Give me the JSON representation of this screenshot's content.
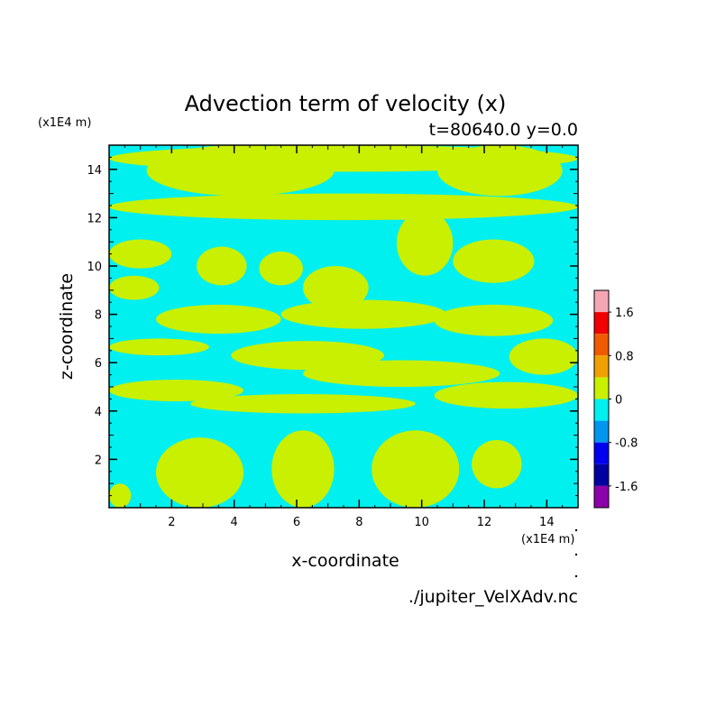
{
  "chart_data": {
    "type": "heatmap",
    "title": "Advection term of velocity (x)",
    "subtitle": "t=80640.0 y=0.0",
    "xlabel": "x-coordinate",
    "ylabel": "z-coordinate",
    "x_unit": "(x1E4 m)",
    "y_unit": "(x1E4 m)",
    "source_file": "./jupiter_VelXAdv.nc",
    "xlim": [
      0,
      15
    ],
    "ylim": [
      0,
      15
    ],
    "x_ticks": [
      2,
      4,
      6,
      8,
      10,
      12,
      14
    ],
    "y_ticks": [
      2,
      4,
      6,
      8,
      10,
      12,
      14
    ],
    "colors": {
      "negative_small": "#00f0f0",
      "positive_small": "#c8f000"
    },
    "colorbar": {
      "levels": [
        {
          "color": "#f5a6b4"
        },
        {
          "color": "#f00000"
        },
        {
          "color": "#f05a00"
        },
        {
          "color": "#f0a000"
        },
        {
          "color": "#c8f000"
        },
        {
          "color": "#00f0f0"
        },
        {
          "color": "#0096f0"
        },
        {
          "color": "#0000f0"
        },
        {
          "color": "#0000a0"
        },
        {
          "color": "#8c00aa"
        }
      ],
      "tick_labels": [
        {
          "value": 1.6,
          "label": "1.6"
        },
        {
          "value": 0.8,
          "label": "0.8"
        },
        {
          "value": 0,
          "label": "0"
        },
        {
          "value": -0.8,
          "label": "-0.8"
        },
        {
          "value": -1.6,
          "label": "-1.6"
        }
      ],
      "range": [
        -2.0,
        2.0
      ]
    },
    "positive_regions": [
      {
        "x": [
          0.0,
          15.0
        ],
        "y": [
          13.9,
          15.0
        ]
      },
      {
        "x": [
          1.2,
          7.2
        ],
        "y": [
          12.9,
          15.0
        ]
      },
      {
        "x": [
          10.5,
          14.5
        ],
        "y": [
          12.9,
          15.0
        ]
      },
      {
        "x": [
          0.0,
          15.0
        ],
        "y": [
          11.9,
          13.0
        ]
      },
      {
        "x": [
          0.0,
          2.0
        ],
        "y": [
          9.9,
          11.1
        ]
      },
      {
        "x": [
          2.8,
          4.4
        ],
        "y": [
          9.2,
          10.8
        ]
      },
      {
        "x": [
          4.8,
          6.2
        ],
        "y": [
          9.2,
          10.6
        ]
      },
      {
        "x": [
          6.2,
          8.3
        ],
        "y": [
          8.2,
          10.0
        ]
      },
      {
        "x": [
          9.2,
          11.0
        ],
        "y": [
          9.6,
          12.3
        ]
      },
      {
        "x": [
          11.0,
          13.6
        ],
        "y": [
          9.3,
          11.1
        ]
      },
      {
        "x": [
          0.0,
          1.6
        ],
        "y": [
          8.6,
          9.6
        ]
      },
      {
        "x": [
          1.5,
          5.5
        ],
        "y": [
          7.2,
          8.4
        ]
      },
      {
        "x": [
          5.5,
          10.8
        ],
        "y": [
          7.4,
          8.6
        ]
      },
      {
        "x": [
          10.4,
          14.2
        ],
        "y": [
          7.1,
          8.4
        ]
      },
      {
        "x": [
          0.0,
          3.2
        ],
        "y": [
          6.3,
          7.0
        ]
      },
      {
        "x": [
          3.9,
          8.8
        ],
        "y": [
          5.7,
          6.9
        ]
      },
      {
        "x": [
          6.2,
          12.5
        ],
        "y": [
          5.0,
          6.1
        ]
      },
      {
        "x": [
          12.8,
          15.0
        ],
        "y": [
          5.5,
          7.0
        ]
      },
      {
        "x": [
          0.0,
          4.3
        ],
        "y": [
          4.4,
          5.3
        ]
      },
      {
        "x": [
          2.6,
          9.8
        ],
        "y": [
          3.9,
          4.7
        ]
      },
      {
        "x": [
          10.4,
          15.0
        ],
        "y": [
          4.1,
          5.2
        ]
      },
      {
        "x": [
          1.5,
          4.3
        ],
        "y": [
          0.0,
          2.9
        ]
      },
      {
        "x": [
          5.2,
          7.2
        ],
        "y": [
          0.0,
          3.2
        ]
      },
      {
        "x": [
          8.4,
          11.2
        ],
        "y": [
          0.0,
          3.2
        ]
      },
      {
        "x": [
          11.6,
          13.2
        ],
        "y": [
          0.8,
          2.8
        ]
      },
      {
        "x": [
          0.0,
          0.7
        ],
        "y": [
          0.0,
          1.0
        ]
      }
    ]
  }
}
